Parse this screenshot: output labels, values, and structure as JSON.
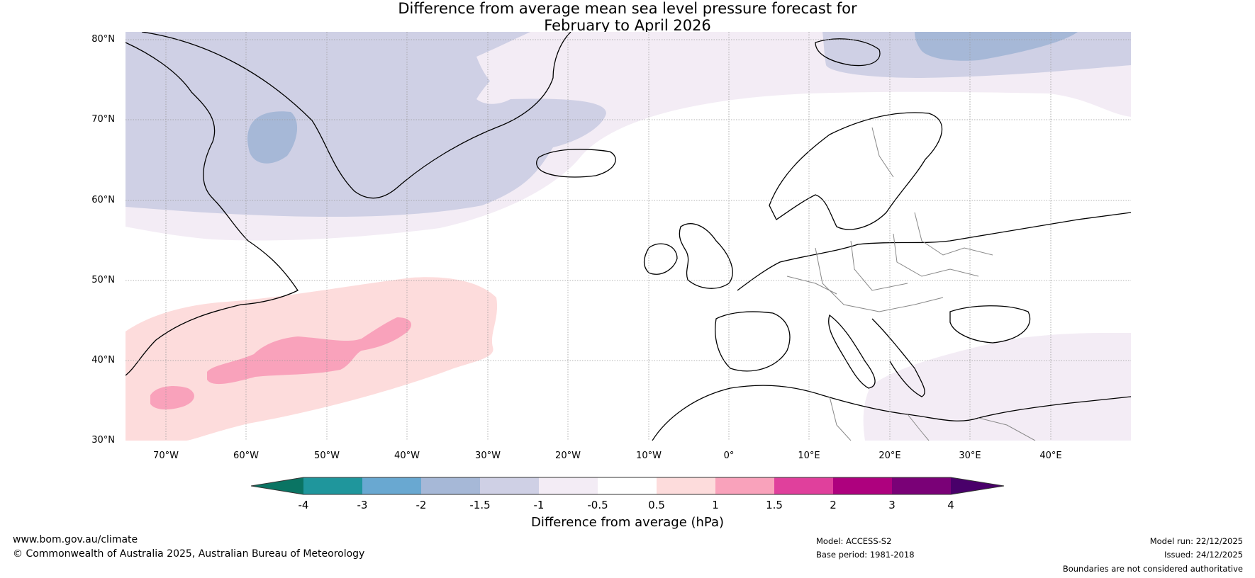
{
  "title": {
    "line1": "Difference from average mean sea level pressure forecast for",
    "line2": "February to April 2026"
  },
  "latitude_ticks": [
    "80°N",
    "70°N",
    "60°N",
    "50°N",
    "40°N",
    "30°N"
  ],
  "longitude_ticks": [
    "70°W",
    "60°W",
    "50°W",
    "40°W",
    "30°W",
    "20°W",
    "10°W",
    "0°",
    "10°E",
    "20°E",
    "30°E",
    "40°E"
  ],
  "colorbar": {
    "label": "Difference from average (hPa)",
    "ticks": [
      "-4",
      "-3",
      "-2",
      "-1.5",
      "-1",
      "-0.5",
      "0.5",
      "1",
      "1.5",
      "2",
      "3",
      "4"
    ],
    "colors": {
      "below_-4": "#0a7463",
      "-4_to_-3": "#1f969c",
      "-3_to_-2": "#69a8d1",
      "-2_to_-1.5": "#a6b8d7",
      "-1.5_to_-1": "#cfd0e5",
      "-1_to_-0.5": "#f3ecf5",
      "-0.5_to_0.5": "#ffffff",
      "0.5_to_1": "#fddcdc",
      "1_to_1.5": "#f9a2bb",
      "1.5_to_2": "#e0409c",
      "2_to_3": "#ae017e",
      "3_to_4": "#7a0177",
      "above_4": "#49006a"
    }
  },
  "footer": {
    "website": "www.bom.gov.au/climate",
    "copyright": "© Commonwealth of Australia 2025, Australian Bureau of Meteorology",
    "model": "Model: ACCESS-S2",
    "base_period": "Base period: 1981-2018",
    "model_run": "Model run: 22/12/2025",
    "issued": "Issued: 24/12/2025",
    "disclaimer": "Boundaries are not considered authoritative"
  }
}
